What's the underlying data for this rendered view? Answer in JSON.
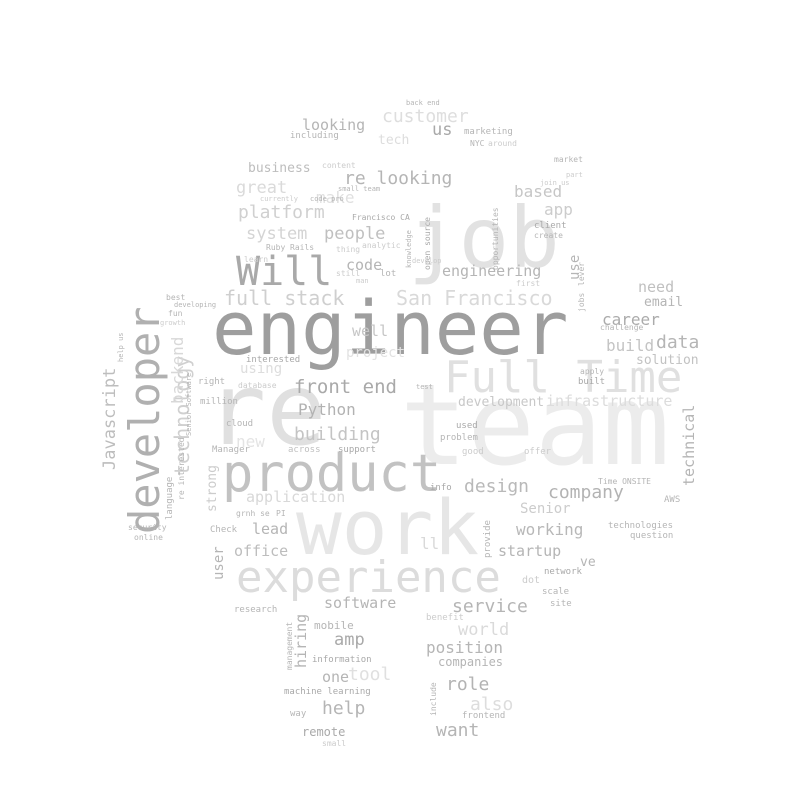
{
  "colors": {
    "background": "#ffffff",
    "shade_dark": "#9e9e9e",
    "shade_mid": "#b5b5b5",
    "shade_light": "#d9d9d9",
    "shade_faint": "#ececec"
  },
  "words": [
    {
      "text": "engineer"
    },
    {
      "text": "team"
    },
    {
      "text": "job"
    },
    {
      "text": "work"
    },
    {
      "text": "re"
    },
    {
      "text": "product"
    },
    {
      "text": "experience"
    },
    {
      "text": "Full Time"
    },
    {
      "text": "developer"
    },
    {
      "text": "Will"
    },
    {
      "text": "San Francisco"
    },
    {
      "text": "full stack"
    },
    {
      "text": "technology"
    },
    {
      "text": "Javascript"
    },
    {
      "text": "backend"
    },
    {
      "text": "front end"
    },
    {
      "text": "building"
    },
    {
      "text": "Python"
    },
    {
      "text": "company"
    },
    {
      "text": "design"
    },
    {
      "text": "data"
    },
    {
      "text": "re looking"
    },
    {
      "text": "platform"
    },
    {
      "text": "system"
    },
    {
      "text": "people"
    },
    {
      "text": "code"
    },
    {
      "text": "engineering"
    },
    {
      "text": "career"
    },
    {
      "text": "build"
    },
    {
      "text": "service"
    },
    {
      "text": "working"
    },
    {
      "text": "startup"
    },
    {
      "text": "office"
    },
    {
      "text": "lead"
    },
    {
      "text": "software"
    },
    {
      "text": "position"
    },
    {
      "text": "role"
    },
    {
      "text": "help"
    },
    {
      "text": "want"
    },
    {
      "text": "amp"
    },
    {
      "text": "one"
    },
    {
      "text": "looking"
    },
    {
      "text": "us"
    },
    {
      "text": "customer"
    },
    {
      "text": "great"
    },
    {
      "text": "business"
    },
    {
      "text": "based"
    },
    {
      "text": "app"
    },
    {
      "text": "application"
    },
    {
      "text": "technical"
    },
    {
      "text": "need"
    },
    {
      "text": "email"
    },
    {
      "text": "solution"
    },
    {
      "text": "infrastructure"
    },
    {
      "text": "development"
    },
    {
      "text": "Senior"
    },
    {
      "text": "hiring"
    },
    {
      "text": "user"
    },
    {
      "text": "strong"
    },
    {
      "text": "tool"
    },
    {
      "text": "world"
    },
    {
      "text": "also"
    },
    {
      "text": "well"
    },
    {
      "text": "make"
    },
    {
      "text": "project"
    },
    {
      "text": "using"
    },
    {
      "text": "new"
    },
    {
      "text": "use"
    },
    {
      "text": "ll"
    },
    {
      "text": "ve"
    },
    {
      "text": "companies"
    },
    {
      "text": "remote"
    },
    {
      "text": "mobile"
    },
    {
      "text": "information"
    },
    {
      "text": "machine learning"
    },
    {
      "text": "management"
    },
    {
      "text": "research"
    },
    {
      "text": "Check"
    },
    {
      "text": "security"
    },
    {
      "text": "online"
    },
    {
      "text": "language"
    },
    {
      "text": "million"
    },
    {
      "text": "right"
    },
    {
      "text": "database"
    },
    {
      "text": "interested"
    },
    {
      "text": "re interested"
    },
    {
      "text": "cloud"
    },
    {
      "text": "support"
    },
    {
      "text": "across"
    },
    {
      "text": "Manager"
    },
    {
      "text": "info"
    },
    {
      "text": "problem"
    },
    {
      "text": "used"
    },
    {
      "text": "offer"
    },
    {
      "text": "good"
    },
    {
      "text": "network"
    },
    {
      "text": "scale"
    },
    {
      "text": "site"
    },
    {
      "text": "dot"
    },
    {
      "text": "benefit"
    },
    {
      "text": "provide"
    },
    {
      "text": "include"
    },
    {
      "text": "frontend"
    },
    {
      "text": "small"
    },
    {
      "text": "way"
    },
    {
      "text": "technologies"
    },
    {
      "text": "question"
    },
    {
      "text": "AWS"
    },
    {
      "text": "Time ONSITE"
    },
    {
      "text": "apply"
    },
    {
      "text": "built"
    },
    {
      "text": "challenge"
    },
    {
      "text": "jobs"
    },
    {
      "text": "lever"
    },
    {
      "text": "Francisco CA"
    },
    {
      "text": "Ruby"
    },
    {
      "text": "Rails"
    },
    {
      "text": "thing"
    },
    {
      "text": "analytic"
    },
    {
      "text": "open source"
    },
    {
      "text": "opportunities"
    },
    {
      "text": "client"
    },
    {
      "text": "create"
    },
    {
      "text": "join us"
    },
    {
      "text": "market"
    },
    {
      "text": "marketing"
    },
    {
      "text": "tech"
    },
    {
      "text": "NYC"
    },
    {
      "text": "around"
    },
    {
      "text": "including"
    },
    {
      "text": "back end"
    },
    {
      "text": "small team"
    },
    {
      "text": "code pro"
    },
    {
      "text": "content"
    },
    {
      "text": "currently"
    },
    {
      "text": "learn"
    },
    {
      "text": "develop"
    },
    {
      "text": "lot"
    },
    {
      "text": "still"
    },
    {
      "text": "man"
    },
    {
      "text": "first"
    },
    {
      "text": "best"
    },
    {
      "text": "fun"
    },
    {
      "text": "developing"
    },
    {
      "text": "growth"
    },
    {
      "text": "help us"
    },
    {
      "text": "grnh se"
    },
    {
      "text": "PI"
    },
    {
      "text": "knowledge"
    },
    {
      "text": "test"
    },
    {
      "text": "part"
    },
    {
      "text": "Senior Software"
    }
  ]
}
